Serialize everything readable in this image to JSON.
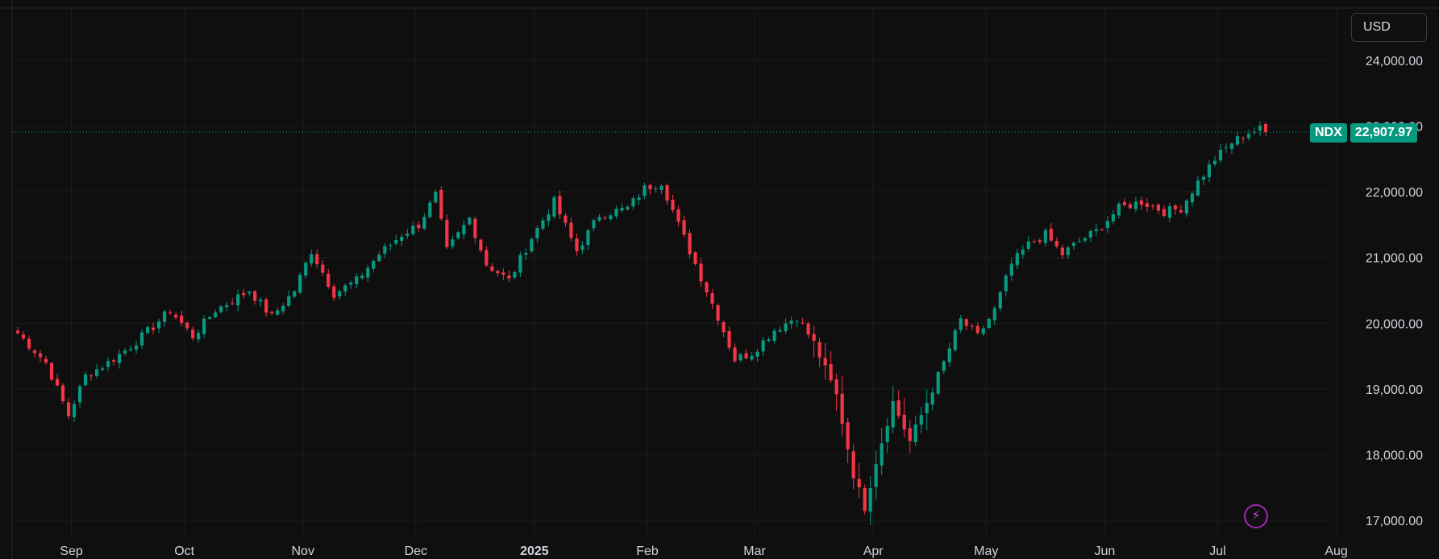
{
  "currency": {
    "label": "USD"
  },
  "price_tag": {
    "symbol": "NDX",
    "value": "22,907.97"
  },
  "icons": {
    "bolt": "lightning-bolt-icon"
  },
  "colors": {
    "up": "#089981",
    "down": "#f23645",
    "background": "#0f0f0f",
    "grid": "#1c1c1c",
    "axis_text": "#d1d4dc",
    "accent_purple": "#9c27b0"
  },
  "chart_data": {
    "type": "candlestick",
    "symbol": "NDX",
    "y_axis": {
      "ticks": [
        17000,
        18000,
        19000,
        20000,
        21000,
        22000,
        23000,
        24000
      ],
      "labels": [
        "17,000.00",
        "18,000.00",
        "19,000.00",
        "20,000.00",
        "21,000.00",
        "22,000.00",
        "23,000.00",
        "24,000.00"
      ],
      "side": "right"
    },
    "x_axis": {
      "labels": [
        "Sep",
        "Oct",
        "Nov",
        "Dec",
        "2025",
        "Feb",
        "Mar",
        "Apr",
        "May",
        "Jun",
        "Jul",
        "Aug"
      ]
    },
    "last_price": 22907.97,
    "grid": true,
    "trend_anchors": [
      [
        0,
        19850
      ],
      [
        5,
        19400
      ],
      [
        9,
        18600
      ],
      [
        12,
        19200
      ],
      [
        16,
        19400
      ],
      [
        20,
        19650
      ],
      [
        24,
        19950
      ],
      [
        27,
        20200
      ],
      [
        31,
        19800
      ],
      [
        35,
        20200
      ],
      [
        41,
        20500
      ],
      [
        45,
        20100
      ],
      [
        49,
        20500
      ],
      [
        52,
        21100
      ],
      [
        56,
        20450
      ],
      [
        60,
        20650
      ],
      [
        64,
        21050
      ],
      [
        68,
        21350
      ],
      [
        71,
        21500
      ],
      [
        74,
        21950
      ],
      [
        76,
        21100
      ],
      [
        80,
        21600
      ],
      [
        83,
        20900
      ],
      [
        87,
        20650
      ],
      [
        91,
        21300
      ],
      [
        95,
        21850
      ],
      [
        99,
        21100
      ],
      [
        103,
        21650
      ],
      [
        108,
        21750
      ],
      [
        111,
        22050
      ],
      [
        114,
        22150
      ],
      [
        117,
        21500
      ],
      [
        121,
        20700
      ],
      [
        124,
        20100
      ],
      [
        127,
        19450
      ],
      [
        130,
        19550
      ],
      [
        134,
        19900
      ],
      [
        138,
        20100
      ],
      [
        141,
        19700
      ],
      [
        145,
        18900
      ],
      [
        148,
        17700
      ],
      [
        150,
        17200
      ],
      [
        152,
        17900
      ],
      [
        155,
        18800
      ],
      [
        158,
        18200
      ],
      [
        161,
        18800
      ],
      [
        164,
        19400
      ],
      [
        167,
        20050
      ],
      [
        170,
        19800
      ],
      [
        173,
        20200
      ],
      [
        176,
        20900
      ],
      [
        179,
        21200
      ],
      [
        182,
        21350
      ],
      [
        185,
        21050
      ],
      [
        188,
        21250
      ],
      [
        191,
        21400
      ],
      [
        195,
        21750
      ],
      [
        199,
        21850
      ],
      [
        203,
        21700
      ],
      [
        206,
        21750
      ],
      [
        209,
        22150
      ],
      [
        212,
        22500
      ],
      [
        215,
        22750
      ],
      [
        218,
        22900
      ],
      [
        220,
        22950
      ],
      [
        221,
        22908
      ]
    ]
  }
}
